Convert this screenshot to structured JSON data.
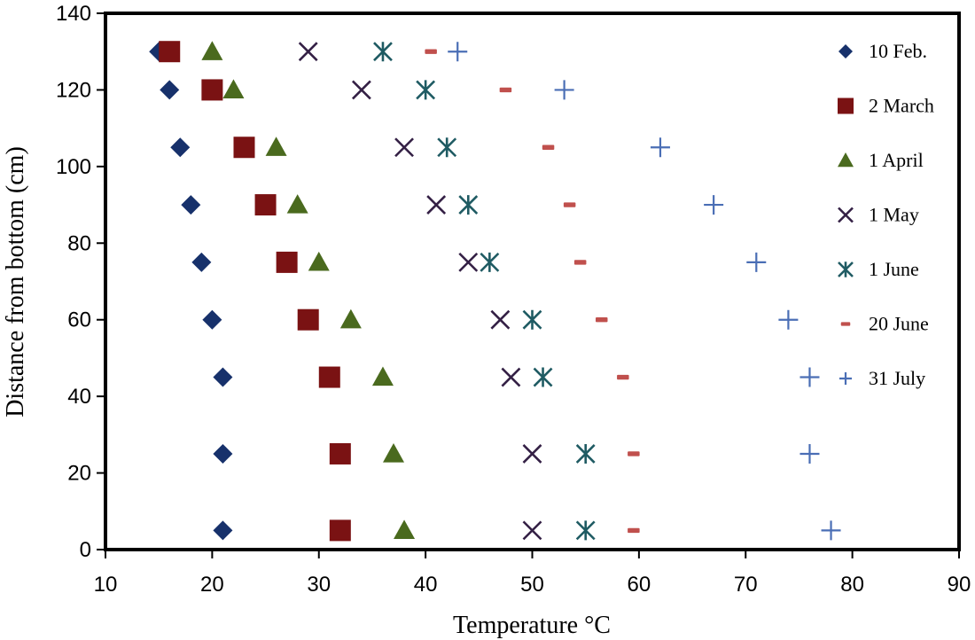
{
  "chart_data": {
    "type": "scatter",
    "title": "",
    "xlabel": "Temperature °C",
    "ylabel": "Distance from bottom (cm)",
    "xlim": [
      10,
      90
    ],
    "ylim": [
      0,
      140
    ],
    "xticks": [
      10,
      20,
      30,
      40,
      50,
      60,
      70,
      80,
      90
    ],
    "yticks": [
      0,
      20,
      40,
      60,
      80,
      100,
      120,
      140
    ],
    "grid": false,
    "legend_position": "right",
    "series": [
      {
        "name": "10 Feb.",
        "marker": "diamond",
        "color": "#17316b",
        "points": [
          [
            15,
            130
          ],
          [
            16,
            120
          ],
          [
            17,
            105
          ],
          [
            18,
            90
          ],
          [
            19,
            75
          ],
          [
            20,
            60
          ],
          [
            21,
            45
          ],
          [
            21,
            25
          ],
          [
            21,
            5
          ]
        ]
      },
      {
        "name": "2 March",
        "marker": "square",
        "color": "#7a1213",
        "points": [
          [
            16,
            130
          ],
          [
            20,
            120
          ],
          [
            23,
            105
          ],
          [
            25,
            90
          ],
          [
            27,
            75
          ],
          [
            29,
            60
          ],
          [
            31,
            45
          ],
          [
            32,
            25
          ],
          [
            32,
            5
          ]
        ]
      },
      {
        "name": "1 April",
        "marker": "triangle",
        "color": "#4a6a1e",
        "points": [
          [
            20,
            130
          ],
          [
            22,
            120
          ],
          [
            26,
            105
          ],
          [
            28,
            90
          ],
          [
            30,
            75
          ],
          [
            33,
            60
          ],
          [
            36,
            45
          ],
          [
            37,
            25
          ],
          [
            38,
            5
          ]
        ]
      },
      {
        "name": "1 May",
        "marker": "x",
        "color": "#342045",
        "points": [
          [
            29,
            130
          ],
          [
            34,
            120
          ],
          [
            38,
            105
          ],
          [
            41,
            90
          ],
          [
            44,
            75
          ],
          [
            47,
            60
          ],
          [
            48,
            45
          ],
          [
            50,
            25
          ],
          [
            50,
            5
          ]
        ]
      },
      {
        "name": "1 June",
        "marker": "asterisk",
        "color": "#1f5b63",
        "points": [
          [
            36,
            130
          ],
          [
            40,
            120
          ],
          [
            42,
            105
          ],
          [
            44,
            90
          ],
          [
            46,
            75
          ],
          [
            50,
            60
          ],
          [
            51,
            45
          ],
          [
            55,
            25
          ],
          [
            55,
            5
          ]
        ]
      },
      {
        "name": "20 June",
        "marker": "dash",
        "color": "#c0504d",
        "points": [
          [
            40.5,
            130
          ],
          [
            47.5,
            120
          ],
          [
            51.5,
            105
          ],
          [
            53.5,
            90
          ],
          [
            54.5,
            75
          ],
          [
            56.5,
            60
          ],
          [
            58.5,
            45
          ],
          [
            59.5,
            25
          ],
          [
            59.5,
            5
          ]
        ]
      },
      {
        "name": "31 July",
        "marker": "plus",
        "color": "#4a6eb5",
        "points": [
          [
            43,
            130
          ],
          [
            53,
            120
          ],
          [
            62,
            105
          ],
          [
            67,
            90
          ],
          [
            71,
            75
          ],
          [
            74,
            60
          ],
          [
            76,
            45
          ],
          [
            76,
            25
          ],
          [
            78,
            5
          ]
        ]
      }
    ]
  }
}
